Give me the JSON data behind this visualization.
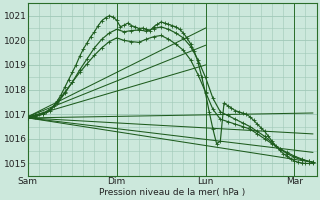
{
  "background_color": "#cce8dc",
  "grid_color": "#a0c8b8",
  "line_color": "#1e5c1e",
  "dark_line_color": "#2a6e2a",
  "x_labels": [
    "Sam",
    "Dim",
    "Lun",
    "Mar"
  ],
  "x_ticks": [
    0,
    96,
    192,
    288
  ],
  "x_max": 312,
  "ylim": [
    1014.5,
    1021.5
  ],
  "yticks": [
    1015,
    1016,
    1017,
    1018,
    1019,
    1020,
    1021
  ],
  "xlabel": "Pression niveau de la mer( hPa )",
  "series": [
    {
      "type": "jagged",
      "points": [
        [
          0,
          1016.9
        ],
        [
          4,
          1016.92
        ],
        [
          8,
          1016.95
        ],
        [
          12,
          1017.0
        ],
        [
          16,
          1017.05
        ],
        [
          20,
          1017.1
        ],
        [
          24,
          1017.2
        ],
        [
          28,
          1017.35
        ],
        [
          32,
          1017.55
        ],
        [
          36,
          1017.8
        ],
        [
          40,
          1018.1
        ],
        [
          44,
          1018.4
        ],
        [
          48,
          1018.7
        ],
        [
          52,
          1019.0
        ],
        [
          56,
          1019.35
        ],
        [
          60,
          1019.65
        ],
        [
          64,
          1019.9
        ],
        [
          68,
          1020.15
        ],
        [
          72,
          1020.35
        ],
        [
          76,
          1020.6
        ],
        [
          80,
          1020.8
        ],
        [
          84,
          1020.92
        ],
        [
          88,
          1021.0
        ],
        [
          92,
          1020.95
        ],
        [
          96,
          1020.82
        ],
        [
          100,
          1020.55
        ],
        [
          104,
          1020.62
        ],
        [
          108,
          1020.7
        ],
        [
          112,
          1020.6
        ],
        [
          116,
          1020.55
        ],
        [
          120,
          1020.48
        ],
        [
          124,
          1020.5
        ],
        [
          128,
          1020.45
        ],
        [
          132,
          1020.4
        ],
        [
          136,
          1020.55
        ],
        [
          140,
          1020.65
        ],
        [
          144,
          1020.75
        ],
        [
          148,
          1020.7
        ],
        [
          152,
          1020.65
        ],
        [
          156,
          1020.6
        ],
        [
          160,
          1020.55
        ],
        [
          164,
          1020.45
        ],
        [
          168,
          1020.3
        ],
        [
          172,
          1020.1
        ],
        [
          176,
          1019.85
        ],
        [
          180,
          1019.55
        ],
        [
          184,
          1019.1
        ],
        [
          188,
          1018.5
        ],
        [
          192,
          1017.85
        ],
        [
          196,
          1017.1
        ],
        [
          200,
          1016.4
        ],
        [
          204,
          1015.8
        ],
        [
          208,
          1015.9
        ],
        [
          212,
          1017.45
        ],
        [
          216,
          1017.35
        ],
        [
          220,
          1017.25
        ],
        [
          224,
          1017.15
        ],
        [
          228,
          1017.1
        ],
        [
          232,
          1017.05
        ],
        [
          236,
          1017.0
        ],
        [
          240,
          1016.9
        ],
        [
          244,
          1016.75
        ],
        [
          248,
          1016.6
        ],
        [
          252,
          1016.45
        ],
        [
          256,
          1016.3
        ],
        [
          260,
          1016.1
        ],
        [
          264,
          1015.9
        ],
        [
          268,
          1015.7
        ],
        [
          272,
          1015.55
        ],
        [
          276,
          1015.4
        ],
        [
          280,
          1015.3
        ],
        [
          284,
          1015.2
        ],
        [
          288,
          1015.1
        ],
        [
          292,
          1015.05
        ],
        [
          296,
          1015.02
        ],
        [
          300,
          1015.0
        ],
        [
          304,
          1015.0
        ],
        [
          308,
          1015.0
        ]
      ]
    },
    {
      "type": "jagged",
      "points": [
        [
          0,
          1016.85
        ],
        [
          8,
          1016.92
        ],
        [
          16,
          1017.0
        ],
        [
          24,
          1017.15
        ],
        [
          32,
          1017.45
        ],
        [
          40,
          1017.85
        ],
        [
          48,
          1018.3
        ],
        [
          56,
          1018.8
        ],
        [
          64,
          1019.25
        ],
        [
          72,
          1019.7
        ],
        [
          80,
          1020.05
        ],
        [
          88,
          1020.3
        ],
        [
          96,
          1020.45
        ],
        [
          104,
          1020.35
        ],
        [
          112,
          1020.4
        ],
        [
          120,
          1020.42
        ],
        [
          128,
          1020.38
        ],
        [
          136,
          1020.48
        ],
        [
          144,
          1020.55
        ],
        [
          152,
          1020.45
        ],
        [
          160,
          1020.3
        ],
        [
          168,
          1020.1
        ],
        [
          176,
          1019.75
        ],
        [
          184,
          1019.2
        ],
        [
          192,
          1018.5
        ],
        [
          200,
          1017.65
        ],
        [
          208,
          1017.1
        ],
        [
          216,
          1016.95
        ],
        [
          224,
          1016.8
        ],
        [
          232,
          1016.65
        ],
        [
          240,
          1016.5
        ],
        [
          248,
          1016.3
        ],
        [
          256,
          1016.1
        ],
        [
          264,
          1015.85
        ],
        [
          272,
          1015.6
        ],
        [
          280,
          1015.4
        ],
        [
          288,
          1015.25
        ],
        [
          296,
          1015.15
        ],
        [
          304,
          1015.08
        ],
        [
          308,
          1015.05
        ]
      ]
    },
    {
      "type": "jagged",
      "points": [
        [
          0,
          1016.85
        ],
        [
          8,
          1016.9
        ],
        [
          16,
          1017.0
        ],
        [
          24,
          1017.2
        ],
        [
          32,
          1017.5
        ],
        [
          40,
          1017.9
        ],
        [
          48,
          1018.3
        ],
        [
          56,
          1018.7
        ],
        [
          64,
          1019.05
        ],
        [
          72,
          1019.4
        ],
        [
          80,
          1019.7
        ],
        [
          88,
          1019.95
        ],
        [
          96,
          1020.1
        ],
        [
          104,
          1020.0
        ],
        [
          112,
          1019.95
        ],
        [
          120,
          1019.92
        ],
        [
          128,
          1020.05
        ],
        [
          136,
          1020.15
        ],
        [
          144,
          1020.2
        ],
        [
          152,
          1020.05
        ],
        [
          160,
          1019.85
        ],
        [
          168,
          1019.6
        ],
        [
          176,
          1019.2
        ],
        [
          184,
          1018.6
        ],
        [
          192,
          1017.9
        ],
        [
          200,
          1017.2
        ],
        [
          208,
          1016.8
        ],
        [
          216,
          1016.7
        ],
        [
          224,
          1016.6
        ],
        [
          232,
          1016.5
        ],
        [
          240,
          1016.4
        ],
        [
          248,
          1016.2
        ],
        [
          256,
          1016.0
        ],
        [
          264,
          1015.8
        ],
        [
          272,
          1015.6
        ],
        [
          280,
          1015.45
        ],
        [
          288,
          1015.3
        ],
        [
          296,
          1015.18
        ],
        [
          304,
          1015.08
        ],
        [
          308,
          1015.05
        ]
      ]
    },
    {
      "type": "straight",
      "points": [
        [
          0,
          1016.9
        ],
        [
          192,
          1020.5
        ]
      ]
    },
    {
      "type": "straight",
      "points": [
        [
          0,
          1016.9
        ],
        [
          192,
          1019.8
        ]
      ]
    },
    {
      "type": "straight",
      "points": [
        [
          0,
          1016.88
        ],
        [
          192,
          1019.0
        ]
      ]
    },
    {
      "type": "straight",
      "points": [
        [
          0,
          1016.85
        ],
        [
          308,
          1017.05
        ]
      ]
    },
    {
      "type": "straight",
      "points": [
        [
          0,
          1016.85
        ],
        [
          308,
          1016.2
        ]
      ]
    },
    {
      "type": "straight",
      "points": [
        [
          0,
          1016.85
        ],
        [
          308,
          1015.45
        ]
      ]
    },
    {
      "type": "straight",
      "points": [
        [
          0,
          1016.85
        ],
        [
          308,
          1015.05
        ]
      ]
    }
  ]
}
